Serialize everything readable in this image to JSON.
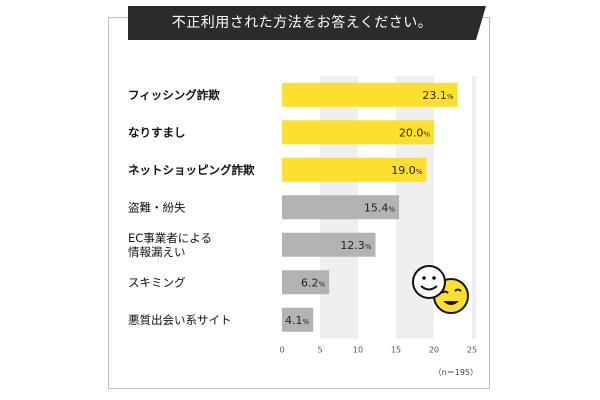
{
  "title": "不正利用された方法をお答えください。",
  "note": "（n＝195）",
  "chart_data": {
    "type": "bar",
    "orientation": "horizontal",
    "categories": [
      [
        "フィッシング詐欺"
      ],
      [
        "なりすまし"
      ],
      [
        "ネットショッピング詐欺"
      ],
      [
        "盗難・紛失"
      ],
      [
        "EC事業者による",
        "情報漏えい"
      ],
      [
        "スキミング"
      ],
      [
        "悪質出会い系サイト"
      ]
    ],
    "values": [
      23.1,
      20.0,
      19.0,
      15.4,
      12.3,
      6.2,
      4.1
    ],
    "value_labels": [
      "23.1",
      "20.0",
      "19.0",
      "15.4",
      "12.3",
      "6.2",
      "4.1"
    ],
    "unit": "%",
    "highlight": [
      true,
      true,
      true,
      false,
      false,
      false,
      false
    ],
    "xlim": [
      0,
      25
    ],
    "xticks": [
      0,
      5,
      10,
      15,
      20,
      25
    ],
    "colors": {
      "highlight": "#fde02d",
      "normal": "#b3b3b3",
      "band": "#efefef"
    },
    "grid": "alternating-bands"
  },
  "decoration": {
    "icon": "smiley-faces-icon"
  }
}
